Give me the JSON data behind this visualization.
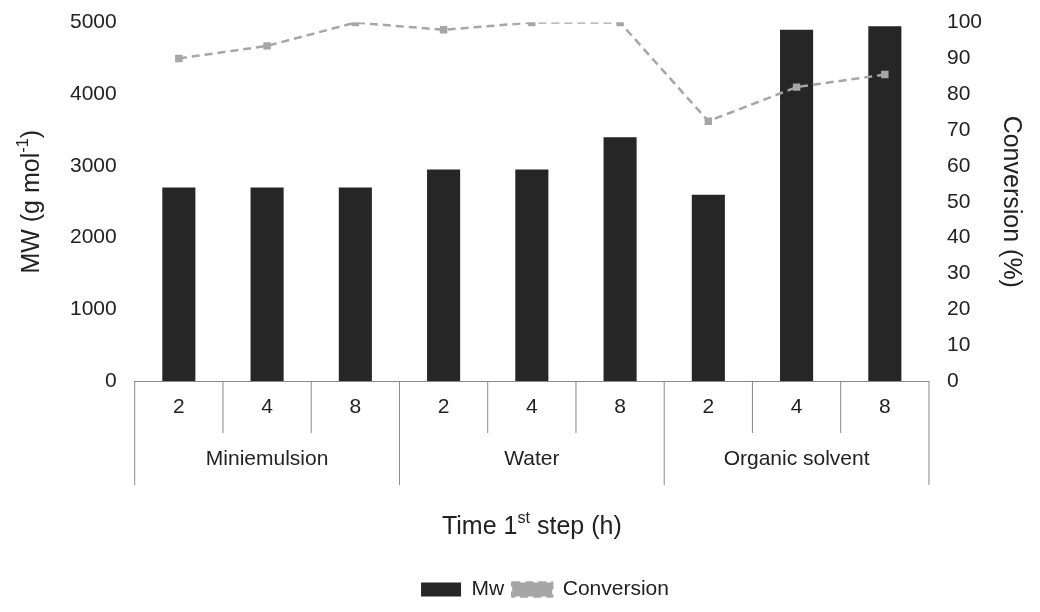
{
  "chart_data": {
    "type": "bar",
    "xlabel": "Time 1$^{st}$ step (h)",
    "ylabel": "MW (g mol$^{-1}$)",
    "y2label": "Conversion (%)",
    "categories": [
      "2",
      "4",
      "8",
      "2",
      "4",
      "8",
      "2",
      "4",
      "8"
    ],
    "annotations": [
      "Miniemulsion",
      "Water",
      "Organic solvent"
    ],
    "series": [
      {
        "name": "Mw",
        "color": "#262626",
        "values": [
          2700,
          2700,
          2700,
          2950,
          2950,
          3400,
          2600,
          4900,
          4950
        ]
      },
      {
        "name": "Conversion",
        "type": "line",
        "axis": "y2",
        "color": "#a6a6a6",
        "marker": "square",
        "line_style": "dashed",
        "values": [
          90,
          93.5,
          100,
          98,
          100,
          100,
          72.5,
          82,
          85.5
        ]
      }
    ],
    "ylim": [
      0,
      5000
    ],
    "yticks": [
      0,
      1000,
      2000,
      3000,
      4000,
      5000
    ],
    "y2lim": [
      0,
      100
    ],
    "y2ticks": [
      0,
      10,
      20,
      30,
      40,
      50,
      60,
      70,
      80,
      90,
      100
    ],
    "grid": false,
    "legend": "bottom"
  }
}
